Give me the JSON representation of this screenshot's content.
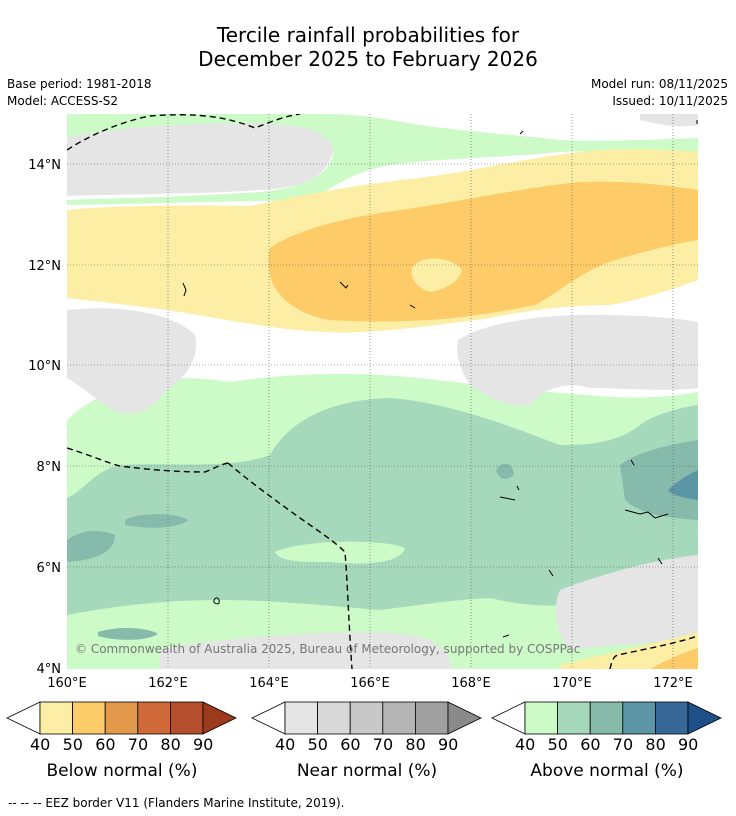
{
  "title_line1": "Tercile rainfall probabilities for",
  "title_line2": "December 2025 to February 2026",
  "base_period": "Base period: 1981-2018",
  "model": "Model: ACCESS-S2",
  "model_run": "Model run: 08/11/2025",
  "issued": "Issued: 10/11/2025",
  "lat_labels": [
    "14°N",
    "12°N",
    "10°N",
    "8°N",
    "6°N",
    "4°N"
  ],
  "lon_labels": [
    "160°E",
    "162°E",
    "164°E",
    "166°E",
    "168°E",
    "170°E",
    "172°E"
  ],
  "copyright": "© Commonwealth of Australia 2025, Bureau of Meteorology, supported by COSPPac",
  "colorbars": [
    {
      "label": "Below normal (%)",
      "ticks": [
        "40",
        "50",
        "60",
        "70",
        "80",
        "90"
      ],
      "colors": [
        "#fdeea5",
        "#fdcb68",
        "#e2994c",
        "#d0693a",
        "#b44e2c",
        "#9c3a1e"
      ]
    },
    {
      "label": "Near normal (%)",
      "ticks": [
        "40",
        "50",
        "60",
        "70",
        "80",
        "90"
      ],
      "colors": [
        "#e5e5e5",
        "#d8d8d8",
        "#c8c8c8",
        "#b5b5b5",
        "#a0a0a0",
        "#8a8a8a"
      ]
    },
    {
      "label": "Above normal (%)",
      "ticks": [
        "40",
        "50",
        "60",
        "70",
        "80",
        "90"
      ],
      "colors": [
        "#ccfbc8",
        "#a6d9bc",
        "#86bbac",
        "#5c96a6",
        "#386898",
        "#1e4f88"
      ]
    }
  ],
  "footnote": "--  --  -- EEZ border V11 (Flanders Marine Institute, 2019)."
}
